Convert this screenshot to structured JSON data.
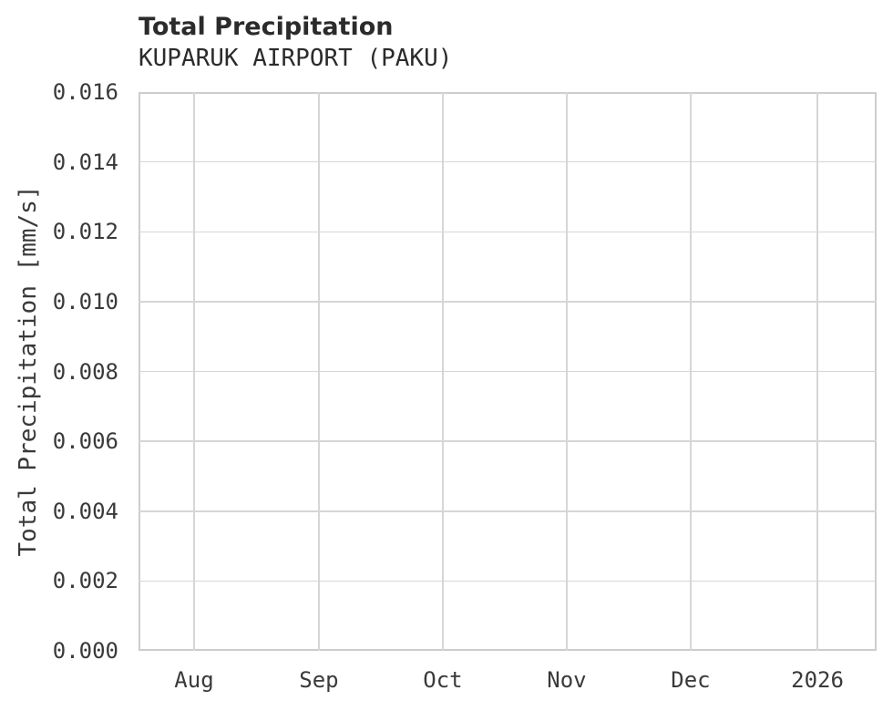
{
  "chart_data": {
    "type": "line",
    "title": "Total Precipitation",
    "subtitle": "KUPARUK AIRPORT (PAKU)",
    "xlabel": "",
    "ylabel": "Total Precipitation [mm/s]",
    "ylim": [
      0.0,
      0.016
    ],
    "y_ticks": [
      {
        "value": 0.0,
        "label": "0.000"
      },
      {
        "value": 0.002,
        "label": "0.002"
      },
      {
        "value": 0.004,
        "label": "0.004"
      },
      {
        "value": 0.006,
        "label": "0.006"
      },
      {
        "value": 0.008,
        "label": "0.008"
      },
      {
        "value": 0.01,
        "label": "0.010"
      },
      {
        "value": 0.012,
        "label": "0.012"
      },
      {
        "value": 0.014,
        "label": "0.014"
      },
      {
        "value": 0.016,
        "label": "0.016"
      }
    ],
    "x_ticks": [
      {
        "pos": 0.0753,
        "label": "Aug"
      },
      {
        "pos": 0.2444,
        "label": "Sep"
      },
      {
        "pos": 0.4123,
        "label": "Oct"
      },
      {
        "pos": 0.5802,
        "label": "Nov"
      },
      {
        "pos": 0.7481,
        "label": "Dec"
      },
      {
        "pos": 0.9198,
        "label": "2026"
      }
    ],
    "series": [],
    "grid": true,
    "legend": "none",
    "colors": {
      "background": "#ffffff",
      "grid": "#d6d6d6",
      "spine": "#cdcdcd",
      "title_text": "#2b2b2b",
      "tick_text": "#3a3a3a"
    }
  }
}
